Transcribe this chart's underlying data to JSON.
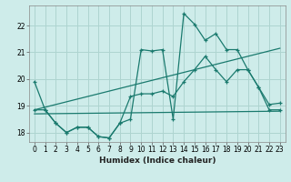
{
  "xlabel": "Humidex (Indice chaleur)",
  "bg_color": "#ceecea",
  "grid_color": "#aed4d0",
  "line_color": "#1a7a6e",
  "xlim": [
    -0.5,
    23.5
  ],
  "ylim": [
    17.65,
    22.75
  ],
  "yticks": [
    18,
    19,
    20,
    21,
    22
  ],
  "xticks": [
    0,
    1,
    2,
    3,
    4,
    5,
    6,
    7,
    8,
    9,
    10,
    11,
    12,
    13,
    14,
    15,
    16,
    17,
    18,
    19,
    20,
    21,
    22,
    23
  ],
  "line1_x": [
    0,
    1,
    2,
    3,
    4,
    5,
    6,
    7,
    8,
    9,
    10,
    11,
    12,
    13,
    14,
    15,
    16,
    17,
    18,
    19,
    20,
    21,
    22,
    23
  ],
  "line1_y": [
    19.9,
    18.85,
    18.35,
    18.0,
    18.2,
    18.2,
    17.85,
    17.8,
    18.35,
    18.5,
    21.1,
    21.05,
    21.1,
    18.5,
    22.45,
    22.05,
    21.45,
    21.7,
    21.1,
    21.1,
    20.35,
    19.7,
    19.05,
    19.1
  ],
  "line2_x": [
    0,
    1,
    2,
    3,
    4,
    5,
    6,
    7,
    8,
    9,
    10,
    11,
    12,
    13,
    14,
    15,
    16,
    17,
    18,
    19,
    20,
    21,
    22,
    23
  ],
  "line2_y": [
    18.85,
    18.85,
    18.35,
    18.0,
    18.2,
    18.2,
    17.85,
    17.8,
    18.35,
    19.35,
    19.45,
    19.45,
    19.55,
    19.35,
    19.9,
    20.35,
    20.85,
    20.35,
    19.9,
    20.35,
    20.35,
    19.7,
    18.85,
    18.85
  ],
  "line3_x": [
    0,
    23
  ],
  "line3_y": [
    18.85,
    21.15
  ],
  "line4_x": [
    0,
    23
  ],
  "line4_y": [
    18.7,
    18.8
  ]
}
